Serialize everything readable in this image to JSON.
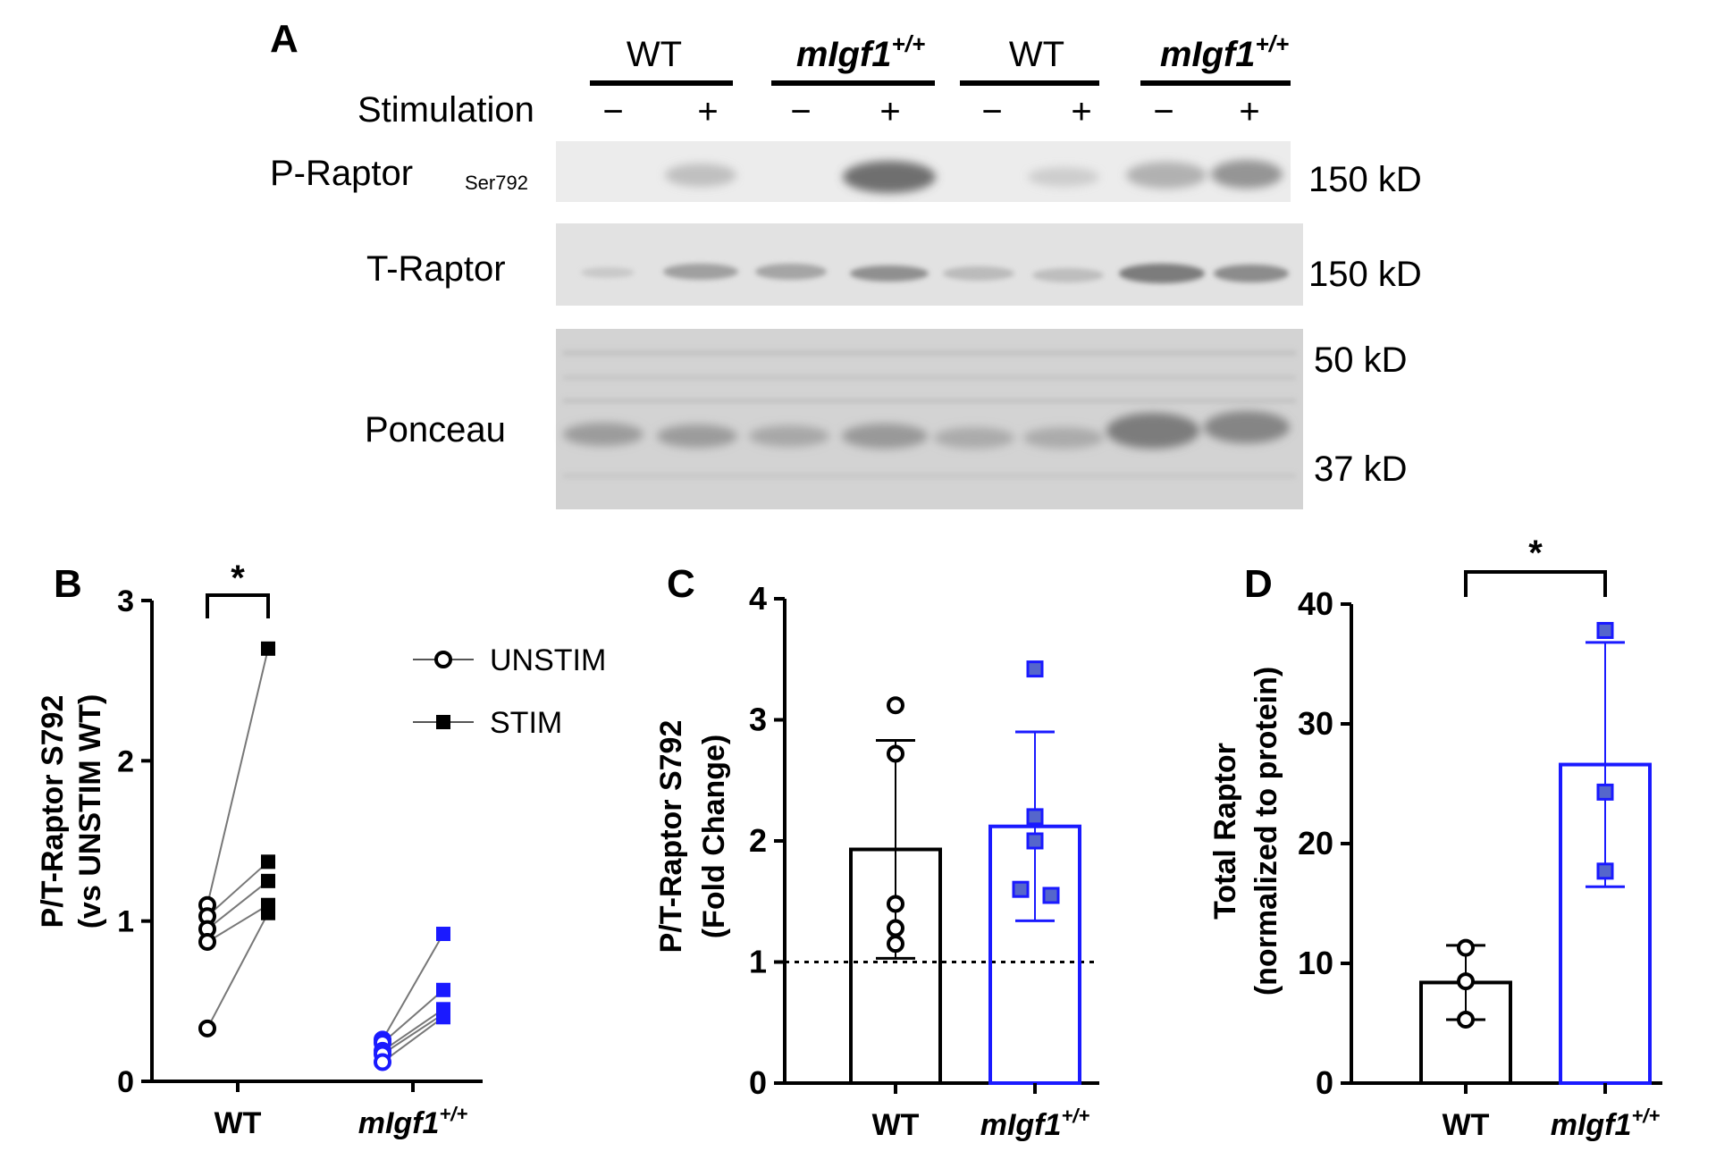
{
  "figure": {
    "panel_a": {
      "letter": "A",
      "groups": [
        "WT",
        "mIgf1",
        "WT",
        "mIgf1"
      ],
      "group_superscript": "+/+",
      "stimulation_label": "Stimulation",
      "lane_signs": [
        "−",
        "+",
        "−",
        "+",
        "−",
        "+",
        "−",
        "+"
      ],
      "rows": [
        {
          "name": "P-Raptor",
          "subscript": "Ser792",
          "size": "150 kD"
        },
        {
          "name": "T-Raptor",
          "subscript": "",
          "size": "150 kD"
        },
        {
          "name": "Ponceau",
          "subscript": "",
          "size_top": "50 kD",
          "size_bottom": "37 kD"
        }
      ]
    },
    "colors": {
      "wt": "#000000",
      "migf1": "#1a1aff",
      "marker_fill": "#5566cc"
    }
  },
  "chart_data": [
    {
      "panel": "B",
      "type": "scatter",
      "style": "paired before-after",
      "ylabel_line1": "P/T-Raptor S792",
      "ylabel_line2": "(vs UNSTIM WT)",
      "ylim": [
        0,
        3
      ],
      "yticks": [
        "0",
        "1",
        "2",
        "3"
      ],
      "categories": [
        "WT",
        "mIgf1"
      ],
      "category_superscript": [
        "",
        "+/+"
      ],
      "legend": [
        "UNSTIM",
        "STIM"
      ],
      "legend_position": "top-right",
      "significance": "*",
      "series": [
        {
          "group": "WT",
          "unstim": [
            1.1,
            1.03,
            0.95,
            0.87,
            0.33
          ],
          "stim": [
            2.7,
            1.37,
            1.25,
            1.1,
            1.05
          ]
        },
        {
          "group": "mIgf1",
          "unstim": [
            0.26,
            0.24,
            0.19,
            0.17,
            0.12
          ],
          "stim": [
            0.92,
            0.57,
            0.45,
            0.42,
            0.4
          ]
        }
      ]
    },
    {
      "panel": "C",
      "type": "bar",
      "ylabel_line1": "P/T-Raptor S792",
      "ylabel_line2": "(Fold Change)",
      "ylim": [
        0,
        4
      ],
      "yticks": [
        "0",
        "1",
        "2",
        "3",
        "4"
      ],
      "reference_line": 1,
      "categories": [
        "WT",
        "mIgf1"
      ],
      "category_superscript": [
        "",
        "+/+"
      ],
      "values": [
        1.93,
        2.12
      ],
      "sd": [
        0.9,
        0.78
      ],
      "points": [
        [
          3.12,
          2.72,
          1.48,
          1.28,
          1.15
        ],
        [
          3.42,
          2.2,
          2.0,
          1.6,
          1.55
        ]
      ]
    },
    {
      "panel": "D",
      "type": "bar",
      "ylabel_line1": "Total Raptor",
      "ylabel_line2": "(normalized to protein)",
      "ylim": [
        0,
        40
      ],
      "yticks": [
        "0",
        "10",
        "20",
        "30",
        "40"
      ],
      "categories": [
        "WT",
        "mIgf1"
      ],
      "category_superscript": [
        "",
        "+/+"
      ],
      "values": [
        8.4,
        26.6
      ],
      "sd": [
        3.1,
        10.2
      ],
      "points": [
        [
          11.3,
          8.5,
          5.3
        ],
        [
          37.8,
          24.3,
          17.7
        ]
      ],
      "significance": "*"
    }
  ]
}
